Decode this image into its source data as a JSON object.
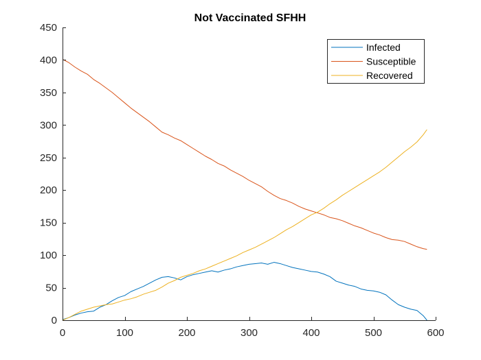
{
  "chart_data": {
    "type": "line",
    "title": "Not Vaccinated SFHH",
    "xlabel": "",
    "ylabel": "",
    "xlim": [
      0,
      600
    ],
    "ylim": [
      0,
      450
    ],
    "xticks": [
      0,
      100,
      200,
      300,
      400,
      500,
      600
    ],
    "yticks": [
      0,
      50,
      100,
      150,
      200,
      250,
      300,
      350,
      400,
      450
    ],
    "xtick_labels": [
      "0",
      "100",
      "200",
      "300",
      "400",
      "500",
      "600"
    ],
    "ytick_labels": [
      "0",
      "50",
      "100",
      "150",
      "200",
      "250",
      "300",
      "350",
      "400",
      "450"
    ],
    "grid": false,
    "legend_position": "top-right",
    "series": [
      {
        "name": "Infected",
        "color": "#0072BD",
        "x": [
          0,
          10,
          20,
          30,
          40,
          50,
          60,
          70,
          80,
          90,
          100,
          110,
          120,
          130,
          140,
          150,
          160,
          170,
          180,
          190,
          200,
          210,
          220,
          230,
          240,
          250,
          260,
          270,
          280,
          290,
          300,
          310,
          320,
          330,
          340,
          350,
          360,
          370,
          380,
          390,
          400,
          410,
          420,
          430,
          440,
          450,
          460,
          470,
          480,
          490,
          500,
          510,
          520,
          530,
          540,
          550,
          560,
          570,
          580,
          586
        ],
        "y": [
          1,
          4,
          8,
          11,
          13,
          14,
          20,
          24,
          30,
          35,
          38,
          44,
          48,
          52,
          57,
          62,
          66,
          67,
          65,
          62,
          67,
          70,
          72,
          74,
          76,
          74,
          77,
          79,
          82,
          84,
          86,
          87,
          88,
          86,
          89,
          87,
          84,
          81,
          79,
          77,
          75,
          74,
          71,
          67,
          60,
          57,
          54,
          52,
          48,
          46,
          45,
          43,
          39,
          31,
          24,
          20,
          17,
          15,
          7,
          0
        ]
      },
      {
        "name": "Susceptible",
        "color": "#D95319",
        "x": [
          0,
          10,
          20,
          30,
          40,
          50,
          60,
          70,
          80,
          90,
          100,
          110,
          120,
          130,
          140,
          150,
          160,
          170,
          180,
          190,
          200,
          210,
          220,
          230,
          240,
          250,
          260,
          270,
          280,
          290,
          300,
          310,
          320,
          330,
          340,
          350,
          360,
          370,
          380,
          390,
          400,
          410,
          420,
          430,
          440,
          450,
          460,
          470,
          480,
          490,
          500,
          510,
          520,
          530,
          540,
          550,
          560,
          570,
          580,
          586
        ],
        "y": [
          401,
          396,
          389,
          383,
          378,
          370,
          364,
          357,
          350,
          342,
          334,
          326,
          319,
          312,
          305,
          297,
          289,
          285,
          280,
          276,
          270,
          264,
          258,
          252,
          247,
          241,
          237,
          231,
          226,
          221,
          215,
          210,
          205,
          198,
          192,
          187,
          184,
          180,
          175,
          171,
          168,
          165,
          162,
          158,
          156,
          153,
          149,
          145,
          142,
          138,
          134,
          131,
          127,
          124,
          123,
          121,
          117,
          113,
          110,
          109
        ]
      },
      {
        "name": "Recovered",
        "color": "#EDB120",
        "x": [
          0,
          10,
          20,
          30,
          40,
          50,
          60,
          70,
          80,
          90,
          100,
          110,
          120,
          130,
          140,
          150,
          160,
          170,
          180,
          190,
          200,
          210,
          220,
          230,
          240,
          250,
          260,
          270,
          280,
          290,
          300,
          310,
          320,
          330,
          340,
          350,
          360,
          370,
          380,
          390,
          400,
          410,
          420,
          430,
          440,
          450,
          460,
          470,
          480,
          490,
          500,
          510,
          520,
          530,
          540,
          550,
          560,
          570,
          580,
          586
        ],
        "y": [
          0,
          4,
          9,
          14,
          17,
          20,
          22,
          24,
          25,
          28,
          31,
          33,
          36,
          40,
          43,
          46,
          51,
          57,
          61,
          66,
          69,
          72,
          76,
          79,
          83,
          87,
          91,
          95,
          99,
          104,
          108,
          112,
          117,
          122,
          127,
          133,
          139,
          144,
          150,
          156,
          162,
          166,
          172,
          179,
          185,
          192,
          198,
          204,
          210,
          216,
          222,
          228,
          235,
          243,
          251,
          259,
          266,
          274,
          285,
          293
        ]
      }
    ]
  }
}
